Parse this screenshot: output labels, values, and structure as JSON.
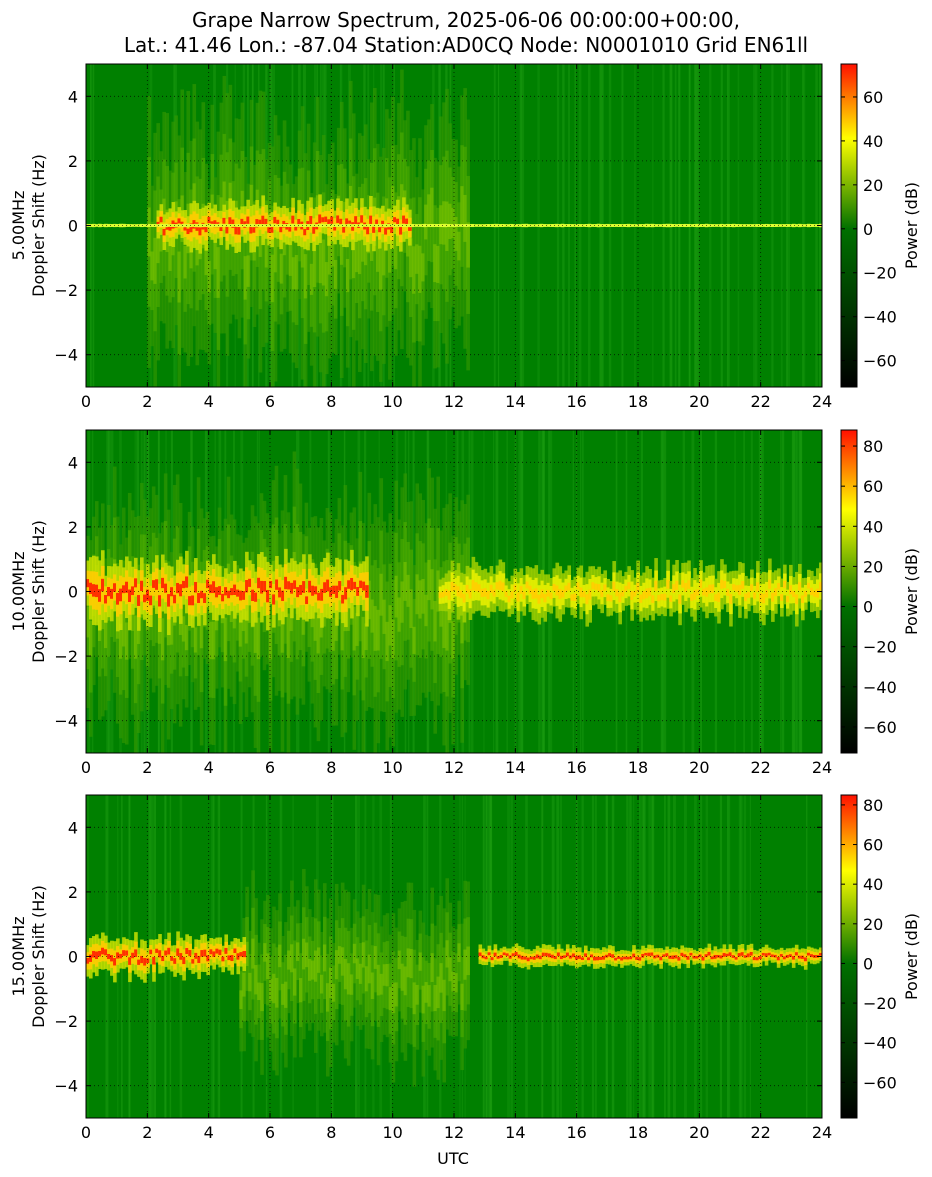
{
  "title": {
    "line1": "Grape Narrow Spectrum, 2025-06-06 00:00:00+00:00,",
    "line2": "Lat.: 41.46 Lon.: -87.04 Station:AD0CQ Node: N0001010 Grid EN61ll"
  },
  "xlabel": "UTC",
  "colors": {
    "high": "#ff1000",
    "mid": "#ffff00",
    "zero": "#007000",
    "low": "#000000",
    "background": "#008000"
  },
  "chart_data": [
    {
      "type": "heatmap",
      "ylabel_line1": "5.00MHz",
      "ylabel_line2": "Doppler Shift (Hz)",
      "xlim": [
        0,
        24
      ],
      "ylim": [
        -5,
        5
      ],
      "xticks": [
        0,
        2,
        4,
        6,
        8,
        10,
        12,
        14,
        16,
        18,
        20,
        22,
        24
      ],
      "yticks": [
        -4,
        -2,
        0,
        2,
        4
      ],
      "colorbar": {
        "label": "Power (dB)",
        "ticks": [
          -60,
          -40,
          -20,
          0,
          20,
          40,
          60
        ],
        "range": [
          -72,
          75
        ]
      },
      "grid": true,
      "features": [
        {
          "x0": 2.3,
          "x1": 10.6,
          "center": 0.0,
          "spread": 0.7,
          "level": "strong"
        },
        {
          "x0": 0.0,
          "x1": 24.0,
          "center": 0.0,
          "spread": 0.05,
          "level": "carrier"
        },
        {
          "x0": 2.0,
          "x1": 12.5,
          "center": -0.5,
          "spread": 4.0,
          "level": "diffuse"
        }
      ]
    },
    {
      "type": "heatmap",
      "ylabel_line1": "10.00MHz",
      "ylabel_line2": "Doppler Shift (Hz)",
      "xlim": [
        0,
        24
      ],
      "ylim": [
        -5,
        5
      ],
      "xticks": [
        0,
        2,
        4,
        6,
        8,
        10,
        12,
        14,
        16,
        18,
        20,
        22,
        24
      ],
      "yticks": [
        -4,
        -2,
        0,
        2,
        4
      ],
      "colorbar": {
        "label": "Power (dB)",
        "ticks": [
          -60,
          -40,
          -20,
          0,
          20,
          40,
          60,
          80
        ],
        "range": [
          -73,
          88
        ]
      },
      "grid": true,
      "features": [
        {
          "x0": 0.0,
          "x1": 9.2,
          "center": 0.0,
          "spread": 1.0,
          "level": "strong"
        },
        {
          "x0": 11.5,
          "x1": 24.0,
          "center": 0.0,
          "spread": 0.8,
          "level": "medium"
        },
        {
          "x0": 0.0,
          "x1": 12.5,
          "center": -0.5,
          "spread": 3.5,
          "level": "diffuse"
        }
      ]
    },
    {
      "type": "heatmap",
      "ylabel_line1": "15.00MHz",
      "ylabel_line2": "Doppler Shift (Hz)",
      "xlim": [
        0,
        24
      ],
      "ylim": [
        -5,
        5
      ],
      "xticks": [
        0,
        2,
        4,
        6,
        8,
        10,
        12,
        14,
        16,
        18,
        20,
        22,
        24
      ],
      "yticks": [
        -4,
        -2,
        0,
        2,
        4
      ],
      "colorbar": {
        "label": "Power (dB)",
        "ticks": [
          -60,
          -40,
          -20,
          0,
          20,
          40,
          60,
          80
        ],
        "range": [
          -78,
          85
        ]
      },
      "grid": true,
      "features": [
        {
          "x0": 0.0,
          "x1": 5.2,
          "center": 0.0,
          "spread": 0.6,
          "level": "strong"
        },
        {
          "x0": 12.8,
          "x1": 24.0,
          "center": 0.0,
          "spread": 0.3,
          "level": "strong"
        },
        {
          "x0": 5.0,
          "x1": 12.5,
          "center": -0.6,
          "spread": 2.5,
          "level": "diffuse"
        }
      ]
    }
  ]
}
